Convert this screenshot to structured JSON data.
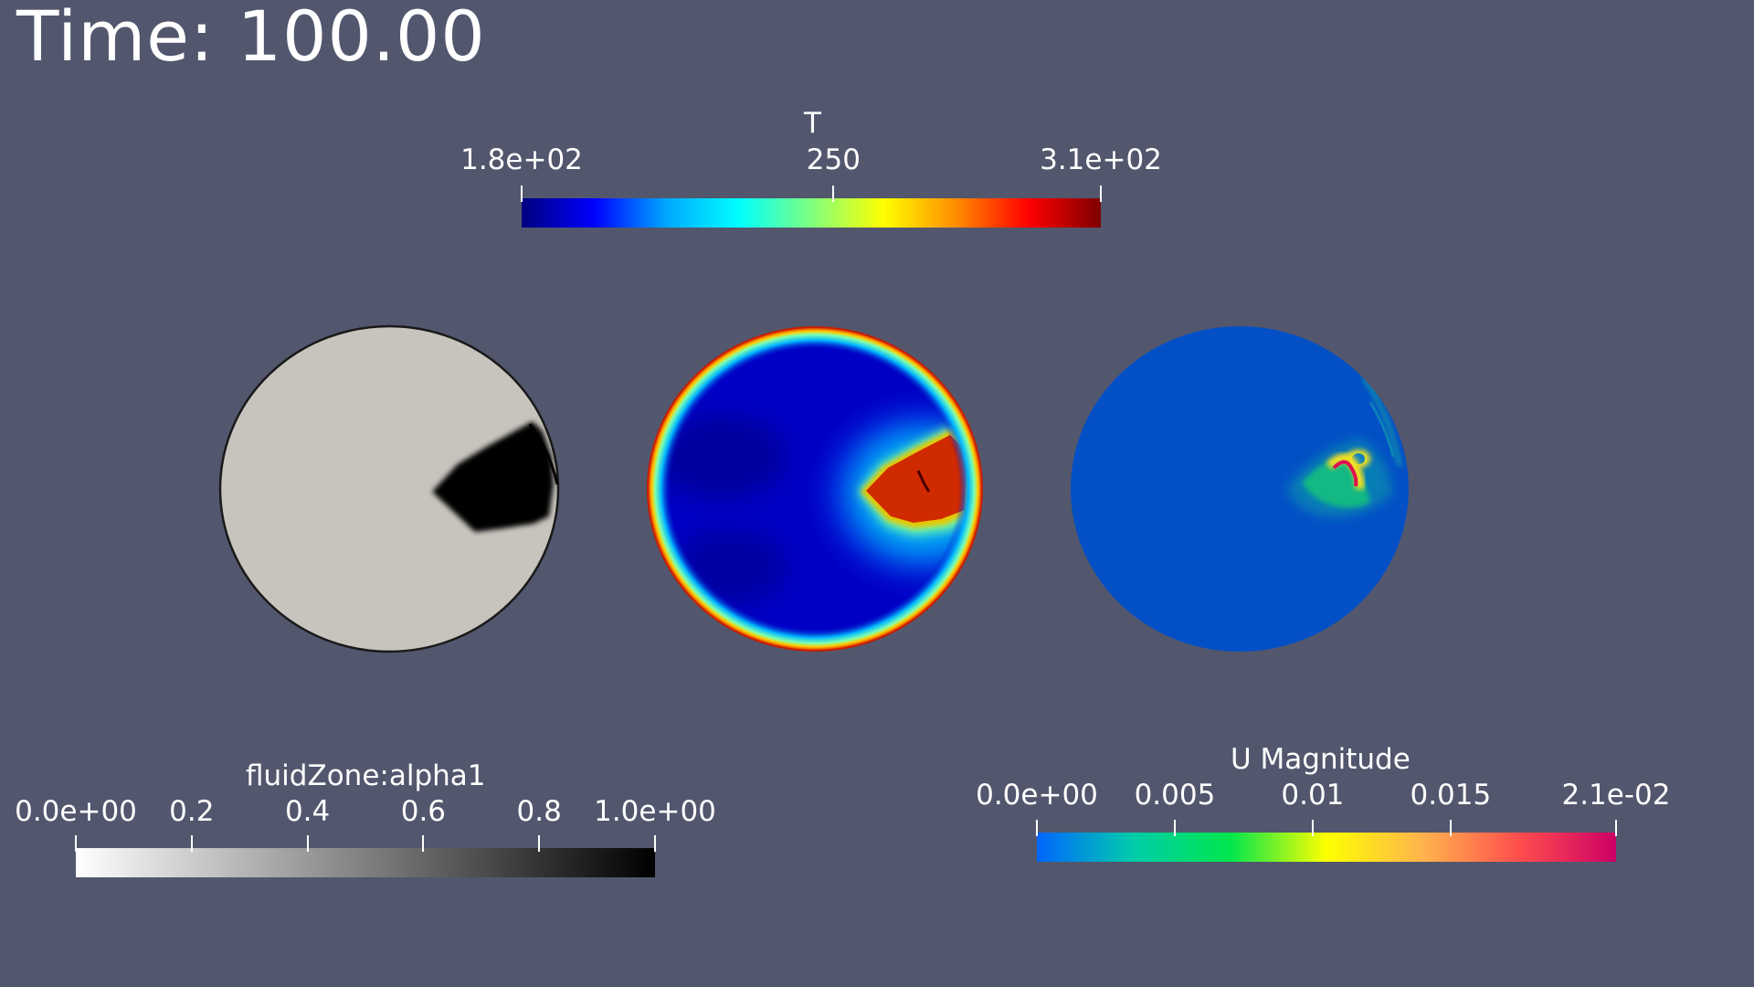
{
  "time_label": "Time: 100.00",
  "colorbars": {
    "temperature": {
      "title": "T",
      "ticks": [
        "1.8e+02",
        "250",
        "3.1e+02"
      ],
      "tick_values": [
        180,
        250,
        310
      ],
      "range": [
        180,
        310
      ],
      "colors": [
        "#00007f",
        "#0000ff",
        "#00a8ff",
        "#00ffff",
        "#7fff7f",
        "#ffff00",
        "#ff8c00",
        "#ff0000",
        "#7f0000"
      ]
    },
    "alpha": {
      "title": "fluidZone:alpha1",
      "ticks": [
        "0.0e+00",
        "0.2",
        "0.4",
        "0.6",
        "0.8",
        "1.0e+00"
      ],
      "tick_values": [
        0,
        0.2,
        0.4,
        0.6,
        0.8,
        1.0
      ],
      "range": [
        0,
        1
      ],
      "colors": [
        "#ffffff",
        "#000000"
      ]
    },
    "velocity": {
      "title": "U Magnitude",
      "ticks": [
        "0.0e+00",
        "0.005",
        "0.01",
        "0.015",
        "2.1e-02"
      ],
      "tick_values": [
        0,
        0.005,
        0.01,
        0.015,
        0.021
      ],
      "range": [
        0,
        0.021
      ],
      "colors": [
        "#0066ff",
        "#00ccaa",
        "#00e64d",
        "#ffff00",
        "#ffb34d",
        "#ff4d4d",
        "#cc0066"
      ]
    }
  },
  "views": [
    {
      "field": "fluidZone:alpha1"
    },
    {
      "field": "T"
    },
    {
      "field": "U Magnitude"
    }
  ]
}
